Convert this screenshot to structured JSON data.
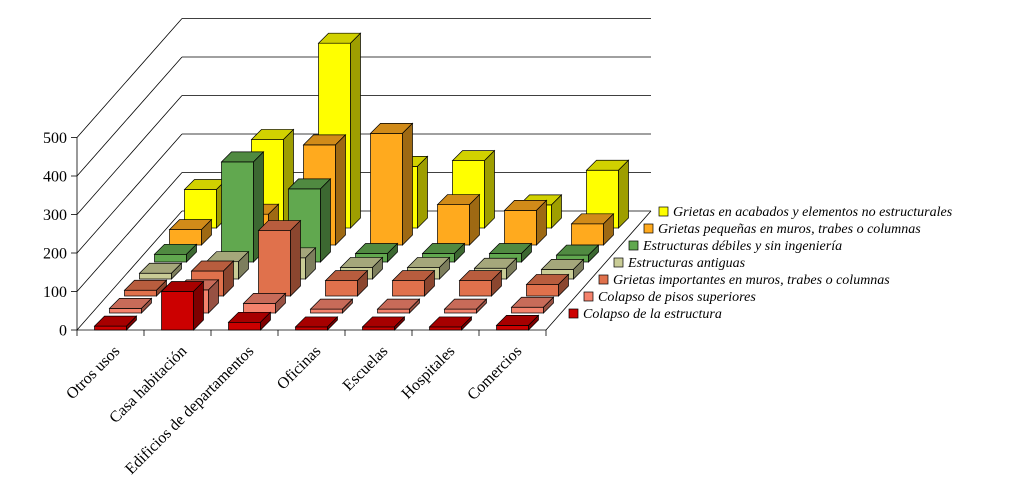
{
  "chart_data": {
    "type": "bar",
    "variant": "3d-column",
    "title": "",
    "xlabel": "",
    "ylabel": "",
    "background": "#FFFFFF",
    "grid": true,
    "legend_position": "right-depth-axis",
    "categories": [
      "Otros usos",
      "Casa habitación",
      "Edificios de departamentos",
      "Oficinas",
      "Escuelas",
      "Hospitales",
      "Comercios"
    ],
    "y_axis": {
      "min": 0,
      "max": 500,
      "ticks": [
        0,
        100,
        200,
        300,
        400,
        500
      ]
    },
    "series_front_to_back": [
      {
        "name": "Colapso de la estructura",
        "color": "#CC0000",
        "values": [
          10,
          100,
          20,
          8,
          8,
          8,
          12
        ]
      },
      {
        "name": "Colapso de pisos superiores",
        "color": "#F4826C",
        "values": [
          12,
          60,
          25,
          10,
          10,
          10,
          15
        ]
      },
      {
        "name": "Grietas importantes en muros, trabes o columnas",
        "color": "#E0714C",
        "values": [
          15,
          65,
          170,
          40,
          40,
          40,
          30
        ]
      },
      {
        "name": "Estructuras antiguas",
        "color": "#C9CC96",
        "values": [
          15,
          45,
          55,
          30,
          30,
          28,
          25
        ]
      },
      {
        "name": "Estructuras débiles y sin ingeniería",
        "color": "#61A84F",
        "values": [
          20,
          260,
          190,
          22,
          22,
          22,
          18
        ]
      },
      {
        "name": "Grietas pequeñas en muros, trabes o columnas",
        "color": "#FFAA1E",
        "values": [
          40,
          80,
          260,
          290,
          105,
          90,
          55
        ]
      },
      {
        "name": "Grietas en acabados y elementos no estructurales",
        "color": "#FFFF00",
        "values": [
          100,
          230,
          480,
          160,
          175,
          60,
          150
        ]
      }
    ]
  }
}
